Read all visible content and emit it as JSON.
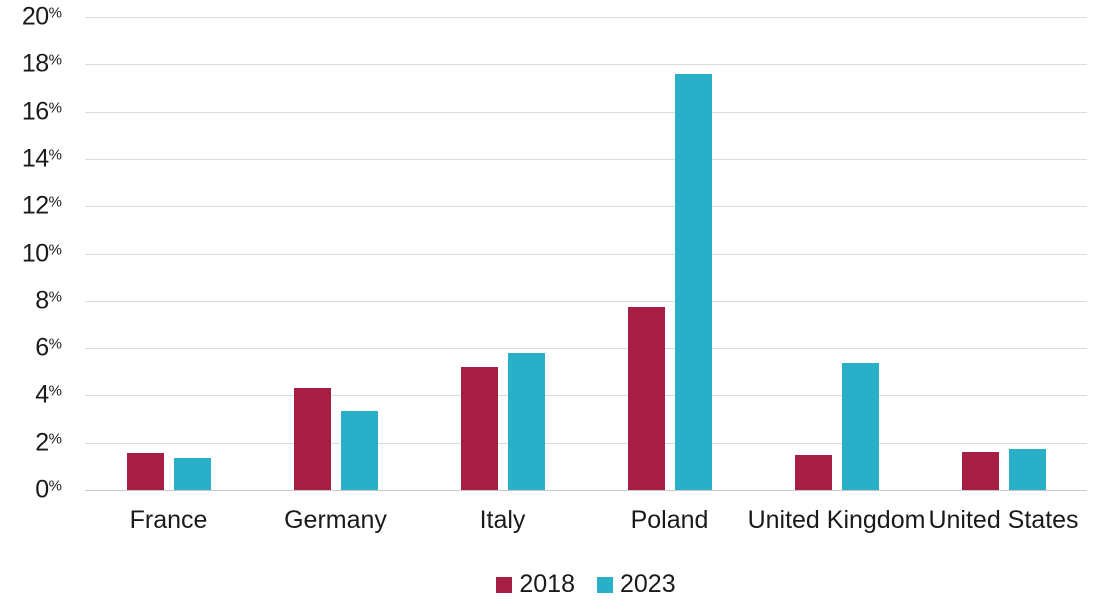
{
  "chart_data": {
    "type": "bar",
    "title": "",
    "categories": [
      "France",
      "Germany",
      "Italy",
      "Poland",
      "United Kingdom",
      "United States"
    ],
    "series": [
      {
        "name": "2018",
        "color": "#a71e44",
        "values": [
          1.55,
          4.3,
          5.2,
          7.75,
          1.5,
          1.6
        ]
      },
      {
        "name": "2023",
        "color": "#29afc8",
        "values": [
          1.35,
          3.35,
          5.8,
          17.6,
          5.35,
          1.75
        ]
      }
    ],
    "xlabel": "",
    "ylabel": "",
    "ylim": [
      0,
      20
    ],
    "ytick_step": 2,
    "yticks": [
      "0%",
      "2%",
      "4%",
      "6%",
      "8%",
      "10%",
      "12%",
      "14%",
      "16%",
      "18%",
      "20%"
    ],
    "ytick_suffix": "%",
    "grid": true,
    "legend_position": "bottom",
    "legend": [
      "2018",
      "2023"
    ],
    "colors": {
      "series_2018": "#a71e44",
      "series_2023": "#29afc8",
      "gridline": "#dcdcdc",
      "baseline": "#c9c9c9",
      "text": "#1a1a1a",
      "background": "#ffffff"
    }
  }
}
